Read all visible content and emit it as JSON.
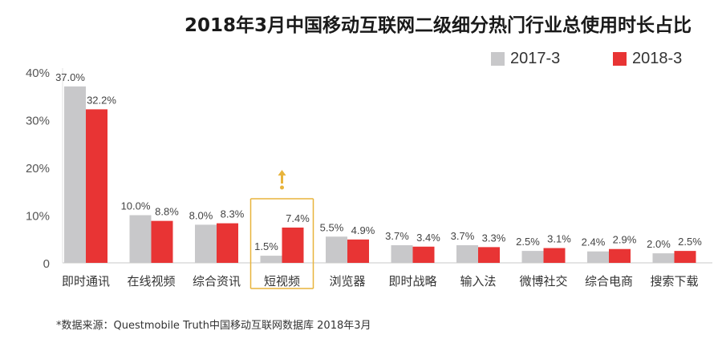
{
  "chart_data": {
    "type": "bar",
    "title": "2018年3月中国移动互联网二级细分热门行业总使用时长占比",
    "xlabel": "",
    "ylabel": "",
    "ylim": [
      0,
      40
    ],
    "yticks": [
      "0",
      "10%",
      "20%",
      "30%",
      "40%"
    ],
    "ytick_values": [
      0,
      10,
      20,
      30,
      40
    ],
    "grid": false,
    "legend_position": "top-right",
    "categories": [
      "即时通讯",
      "在线视频",
      "综合资讯",
      "短视频",
      "浏览器",
      "即时战略",
      "输入法",
      "微博社交",
      "综合电商",
      "搜索下载"
    ],
    "series": [
      {
        "name": "2017-3",
        "color": "#c8c8ca",
        "values": [
          37.0,
          10.0,
          8.0,
          1.5,
          5.5,
          3.7,
          3.7,
          2.5,
          2.4,
          2.0
        ],
        "labels": [
          "37.0%",
          "10.0%",
          "8.0%",
          "1.5%",
          "5.5%",
          "3.7%",
          "3.7%",
          "2.5%",
          "2.4%",
          "2.0%"
        ]
      },
      {
        "name": "2018-3",
        "color": "#e83434",
        "values": [
          32.2,
          8.8,
          8.3,
          7.4,
          4.9,
          3.4,
          3.3,
          3.1,
          2.9,
          2.5
        ],
        "labels": [
          "32.2%",
          "8.8%",
          "8.3%",
          "7.4%",
          "4.9%",
          "3.4%",
          "3.3%",
          "3.1%",
          "2.9%",
          "2.5%"
        ]
      }
    ],
    "highlight": {
      "category": "短视频",
      "color": "#e8b43c",
      "annotation": "up-arrow"
    }
  },
  "footnote": "*数据来源：Questmobile Truth中国移动互联网数据库 2018年3月"
}
